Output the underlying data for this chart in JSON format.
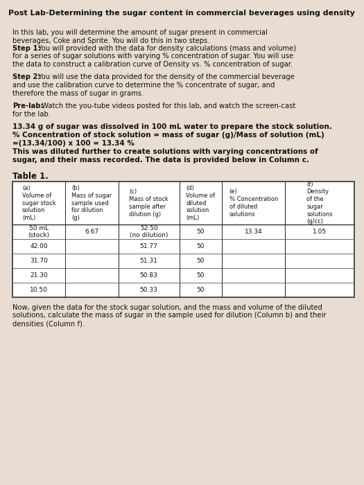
{
  "title": "Post Lab-Determining the sugar content in commercial beverages using density",
  "bg_color": "#e8ddd0",
  "text_color": "#111111",
  "p1_line1": "In this lab, you will determine the amount of sugar present in commercial",
  "p1_line2": "beverages, Coke and Sprite. You will do this in two steps.",
  "p1_step1_bold": "Step 1:",
  "p1_step1_rest": " You will provided with the data for density calculations (mass and volume)",
  "p1_line4": "for a series of sugar solutions with varying % concentration of sugar. You will use",
  "p1_line5": "the data to construct a calibration curve of Density vs. % concentration of sugar.",
  "p2_step2_bold": "Step 2:",
  "p2_step2_rest": " You will use the data provided for the density of the commercial beverage",
  "p2_line2": "and use the calibration curve to determine the % concentrate of sugar, and",
  "p2_line3": "therefore the mass of sugar in grams.",
  "p3_prelab_bold": "Pre-lab:",
  "p3_prelab_rest": " Watch the you-tube videos posted for this lab, and watch the screen-cast",
  "p3_line2": "for the lab.",
  "p4_line1": "13.34 g of sugar was dissolved in 100 mL water to prepare the stock solution.",
  "p4_line2": "% Concentration of stock solution = mass of sugar (g)/Mass of solution (mL)",
  "p4_line3": "=(13.34/100) x 100 = 13.34 %",
  "p4_line4": "This was diluted further to create solutions with varying concentrations of",
  "p4_line5": "sugar, and their mass recorded. The data is provided below in Column c.",
  "table_title": "Table 1.",
  "col_headers": [
    "(a)\nVolume of\nsugar stock\nsolution\n(mL)",
    "(b)\nMass of sugar\nsample used\nfor dilution\n(g)",
    "(c)\nMass of stock\nsample after\ndilution (g)",
    "(d)\nVolume of\ndiluted\nsolution\n(mL)",
    "(e)\n% Concentration\nof diluted\nsolutions",
    "(f)\nDensity\nof the\nsugar\nsolutions\n(g/cc)"
  ],
  "table_rows": [
    [
      "50 mL\n(stock)",
      "6.67",
      "52.50\n(no dilution)",
      "50",
      "13.34",
      "1.05"
    ],
    [
      "42.00",
      "",
      "51.77",
      "50",
      "",
      ""
    ],
    [
      "31.70",
      "",
      "51.31",
      "50",
      "",
      ""
    ],
    [
      "21.30",
      "",
      "50.83",
      "50",
      "",
      ""
    ],
    [
      "10.50",
      "",
      "50.33",
      "50",
      "",
      ""
    ]
  ],
  "footer_line1": "Now, given the data for the stock sugar solution, and the mass and volume of the diluted",
  "footer_line2": "solutions, calculate the mass of sugar in the sample used for dilution (Column b) and their",
  "footer_line3": "densities (Column f)."
}
